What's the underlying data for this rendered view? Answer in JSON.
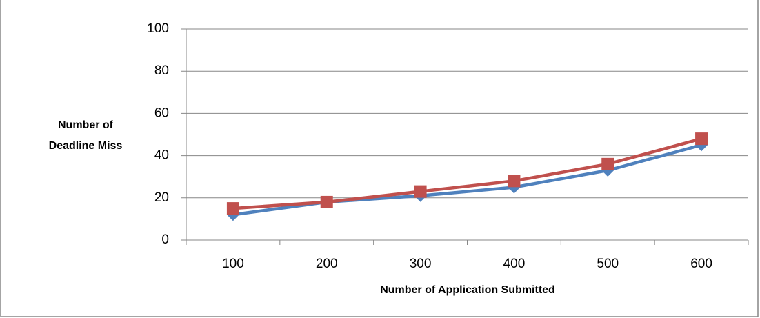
{
  "chart_data": {
    "type": "line",
    "x_label": "Number of Application Submitted",
    "y_label": [
      "Number of",
      "Deadline Miss"
    ],
    "categories": [
      "100",
      "200",
      "300",
      "400",
      "500",
      "600"
    ],
    "series": [
      {
        "color": "#4f81bd",
        "marker": "diamond",
        "values": [
          12,
          18,
          21,
          25,
          33,
          45
        ]
      },
      {
        "color": "#c0504d",
        "marker": "square",
        "values": [
          15,
          18,
          23,
          28,
          36,
          48
        ]
      }
    ],
    "ylim": [
      0,
      100
    ],
    "yticks": [
      0,
      20,
      40,
      60,
      80,
      100
    ],
    "grid": true
  }
}
